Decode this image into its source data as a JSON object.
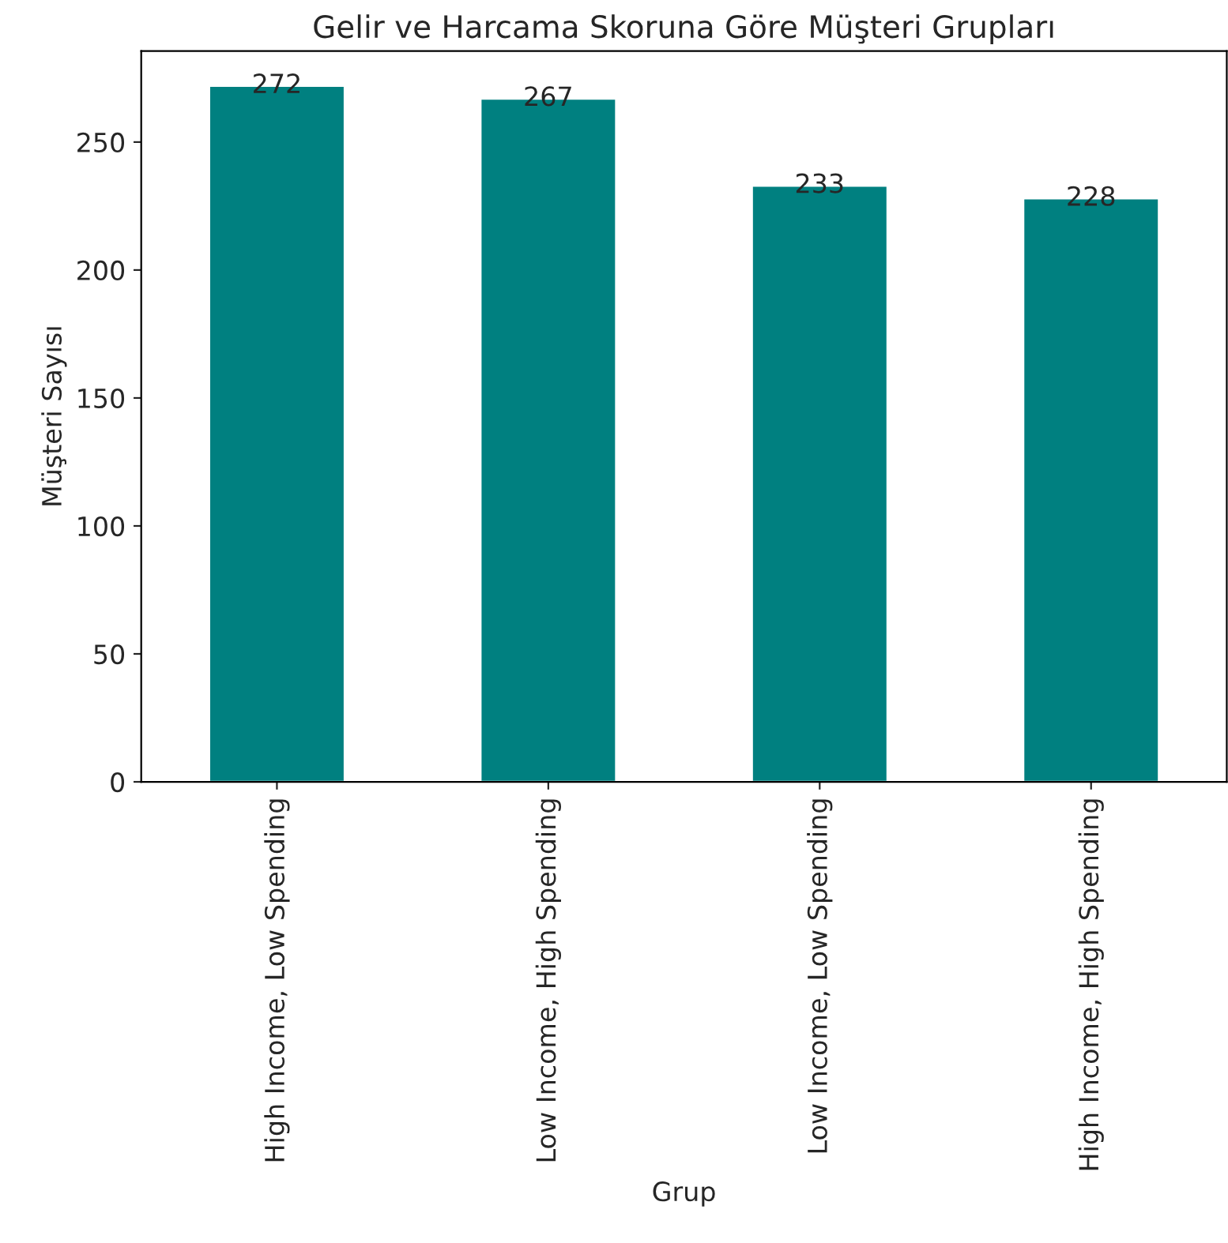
{
  "chart_data": {
    "type": "bar",
    "title": "Gelir ve Harcama Skoruna Göre Müşteri Grupları",
    "xlabel": "Grup",
    "ylabel": "Müşteri Sayısı",
    "categories": [
      "High Income, Low Spending",
      "Low Income, High Spending",
      "Low Income, Low Spending",
      "High Income, High Spending"
    ],
    "values": [
      272,
      267,
      233,
      228
    ],
    "color": "#008080",
    "data_labels": true,
    "ylim": [
      0,
      285.6
    ],
    "yticks": [
      0,
      50,
      100,
      150,
      200,
      250
    ],
    "grid": false,
    "legend": false
  }
}
